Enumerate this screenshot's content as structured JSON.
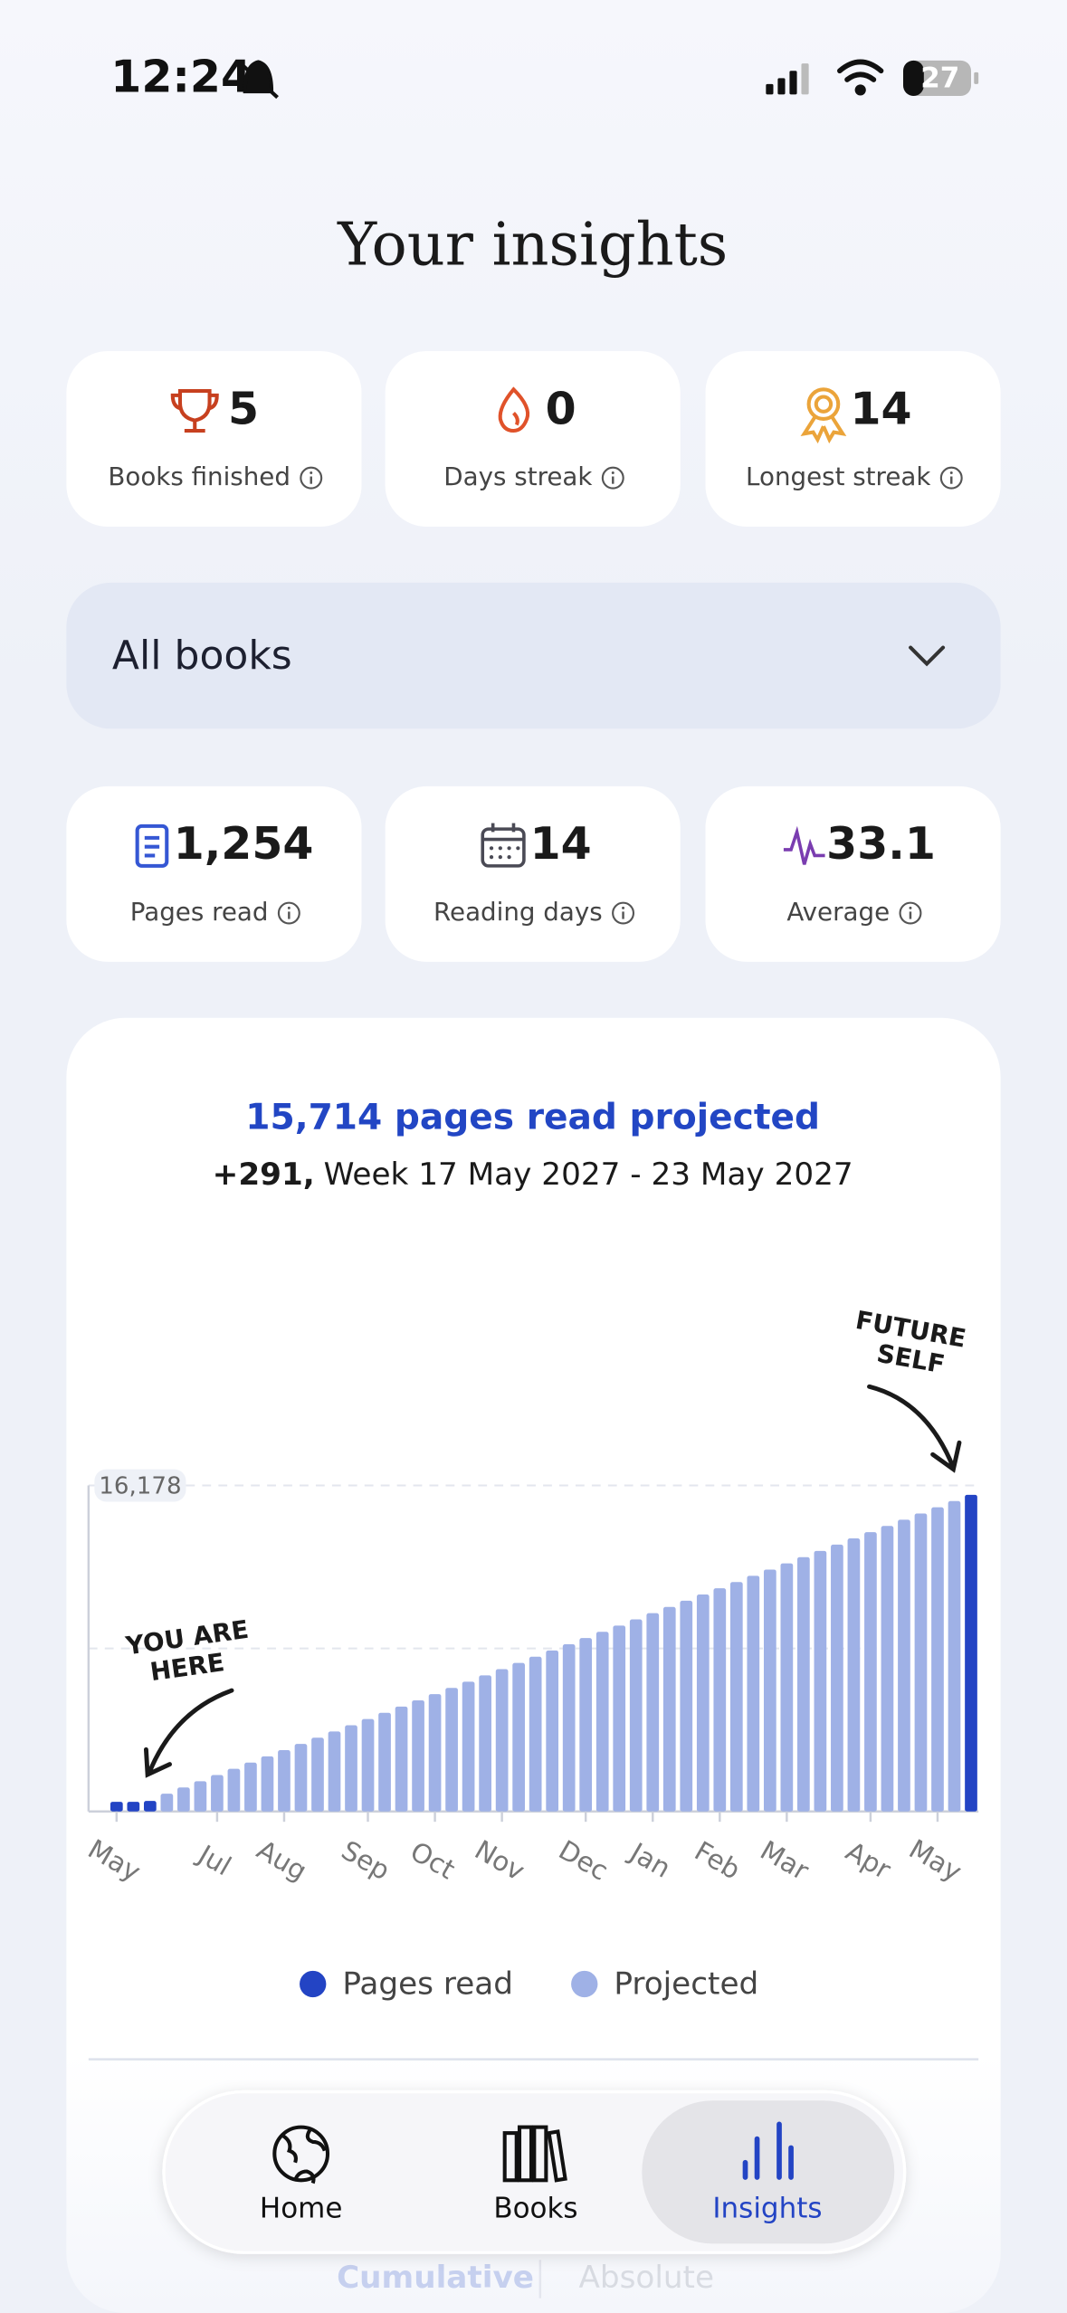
{
  "status_bar": {
    "time": "12:24",
    "battery": "27"
  },
  "header": {
    "title": "Your insights"
  },
  "stats": [
    {
      "value": "5",
      "label": "Books finished"
    },
    {
      "value": "0",
      "label": "Days streak"
    },
    {
      "value": "14",
      "label": "Longest streak"
    }
  ],
  "filter": {
    "selected": "All books"
  },
  "metrics": [
    {
      "value": "1,254",
      "label": "Pages read"
    },
    {
      "value": "14",
      "label": "Reading days"
    },
    {
      "value": "33.1",
      "label": "Average"
    }
  ],
  "chart_data": {
    "type": "bar",
    "title": "15,714 pages read projected",
    "subtitle_delta": "+291,",
    "subtitle": "Week 17 May 2027 - 23 May 2027",
    "categories": [
      "May",
      null,
      null,
      null,
      null,
      null,
      "Jul",
      null,
      null,
      null,
      "Aug",
      null,
      null,
      null,
      null,
      "Sep",
      null,
      null,
      null,
      "Oct",
      null,
      null,
      null,
      "Nov",
      null,
      null,
      null,
      null,
      "Dec",
      null,
      null,
      null,
      "Jan",
      null,
      null,
      null,
      "Feb",
      null,
      null,
      null,
      "Mar",
      null,
      null,
      null,
      null,
      "Apr",
      null,
      null,
      null,
      "May",
      null,
      null
    ],
    "series": [
      {
        "name": "Pages read",
        "color": "#2344c4",
        "values": [
          480,
          480,
          520,
          null,
          null,
          null,
          null,
          null,
          null,
          null,
          null,
          null,
          null,
          null,
          null,
          null,
          null,
          null,
          null,
          null,
          null,
          null,
          null,
          null,
          null,
          null,
          null,
          null,
          null,
          null,
          null,
          null,
          null,
          null,
          null,
          null,
          null,
          null,
          null,
          null,
          null,
          null,
          null,
          null,
          null,
          null,
          null,
          null,
          null,
          null,
          null,
          null
        ]
      },
      {
        "name": "Projected",
        "color": "#9fb1e6",
        "values": [
          null,
          null,
          null,
          880,
          1189,
          1498,
          1807,
          2116,
          2425,
          2734,
          3043,
          3352,
          3661,
          3970,
          4279,
          4588,
          4897,
          5206,
          5515,
          5824,
          6133,
          6442,
          6751,
          7060,
          7369,
          7678,
          7987,
          8296,
          8605,
          8914,
          9223,
          9532,
          9841,
          10150,
          10459,
          10768,
          11077,
          11386,
          11695,
          12004,
          12313,
          12622,
          12931,
          13240,
          13549,
          13858,
          14167,
          14476,
          14785,
          15094,
          15403,
          15714
        ]
      }
    ],
    "highlight": {
      "index": 51,
      "color": "#2344c4"
    },
    "ylim": [
      0,
      16178
    ],
    "yticks": [
      {
        "value": 16178,
        "label": "16,178"
      }
    ],
    "grid": true,
    "annotations": [
      {
        "lines": [
          "YOU ARE",
          "HERE"
        ]
      },
      {
        "lines": [
          "FUTURE",
          "SELF"
        ]
      }
    ],
    "modes": [
      "Cumulative",
      "Absolute"
    ]
  },
  "nav": [
    {
      "label": "Home"
    },
    {
      "label": "Books"
    },
    {
      "label": "Insights"
    }
  ]
}
